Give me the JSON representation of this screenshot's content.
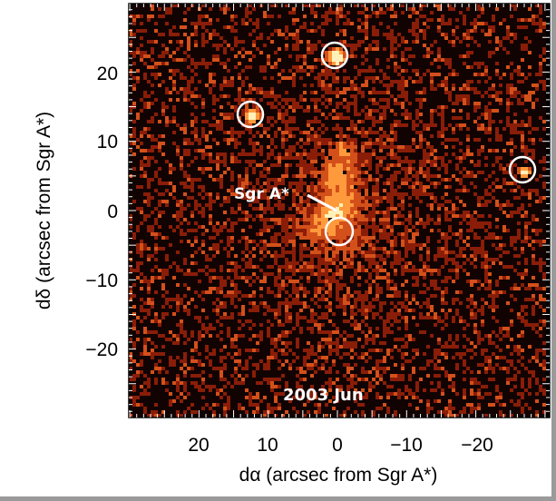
{
  "figure": {
    "label_sgr": "Sgr A*",
    "label_epoch": "2003 Jun",
    "ylabel": "dδ (arcsec from Sgr A*)",
    "xlabel": "dα (arcsec from Sgr A*)",
    "x_ticks": [
      "20",
      "10",
      "0",
      "−10",
      "−20"
    ],
    "y_ticks": [
      "20",
      "10",
      "0",
      "−10",
      "−20"
    ],
    "colors": {
      "background": "#120303",
      "pixel_low": "#8a1d08",
      "pixel_mid": "#d4501a",
      "pixel_high": "#ff9a3c",
      "circle": "#ffffff"
    }
  }
}
